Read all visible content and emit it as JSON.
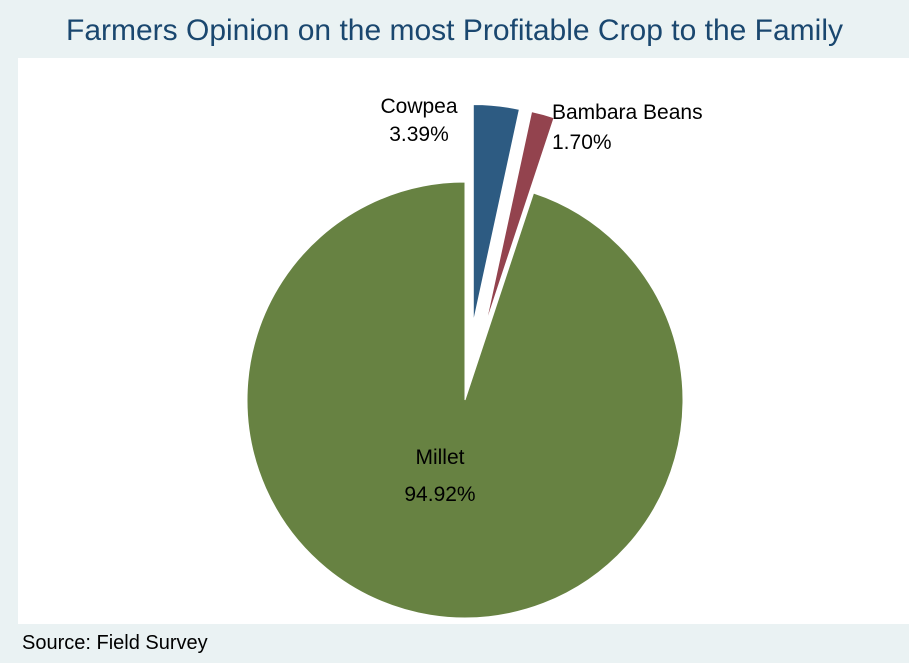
{
  "chart_data": {
    "type": "pie",
    "title": "Farmers Opinion on the most Profitable Crop to the Family",
    "slices": [
      {
        "name": "Cowpea",
        "value": 3.39,
        "label": "3.39%",
        "color": "#2d5b82",
        "exploded": true
      },
      {
        "name": "Bambara Beans",
        "value": 1.7,
        "label": "1.70%",
        "color": "#93434e",
        "exploded": true
      },
      {
        "name": "Millet",
        "value": 94.92,
        "label": "94.92%",
        "color": "#678242",
        "exploded": false
      }
    ],
    "start": "12 o'clock",
    "direction": "clockwise",
    "note": "Source: Field Survey"
  }
}
